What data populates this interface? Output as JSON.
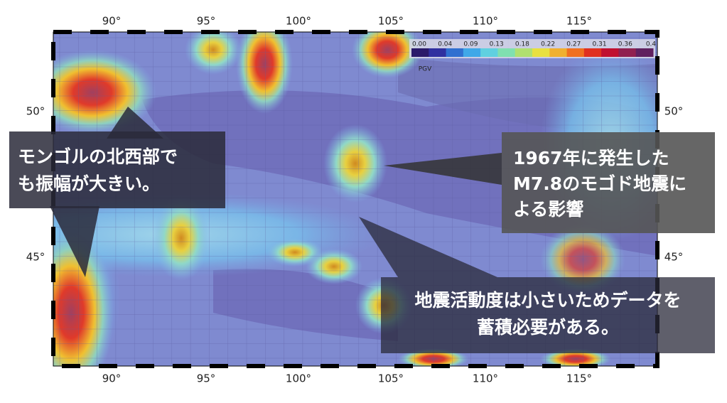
{
  "map": {
    "lon_labels": [
      "90°",
      "95°",
      "100°",
      "105°",
      "110°",
      "115°"
    ],
    "lat_labels": [
      "50°",
      "45°"
    ],
    "colorbar": {
      "labels": [
        "0.00",
        "0.04",
        "0.09",
        "0.13",
        "0.18",
        "0.22",
        "0.27",
        "0.31",
        "0.36",
        "0.4"
      ],
      "title": "PGV"
    },
    "callouts": [
      {
        "lines": [
          "モンゴルの北西部で",
          "も振幅が大きい。"
        ]
      },
      {
        "lines": [
          "1967年に発生した",
          "M7.8のモゴド地震に",
          "よる影響"
        ]
      },
      {
        "lines": [
          "地震活動度は小さいためデータを",
          "蓄積必要がある。"
        ]
      }
    ]
  }
}
